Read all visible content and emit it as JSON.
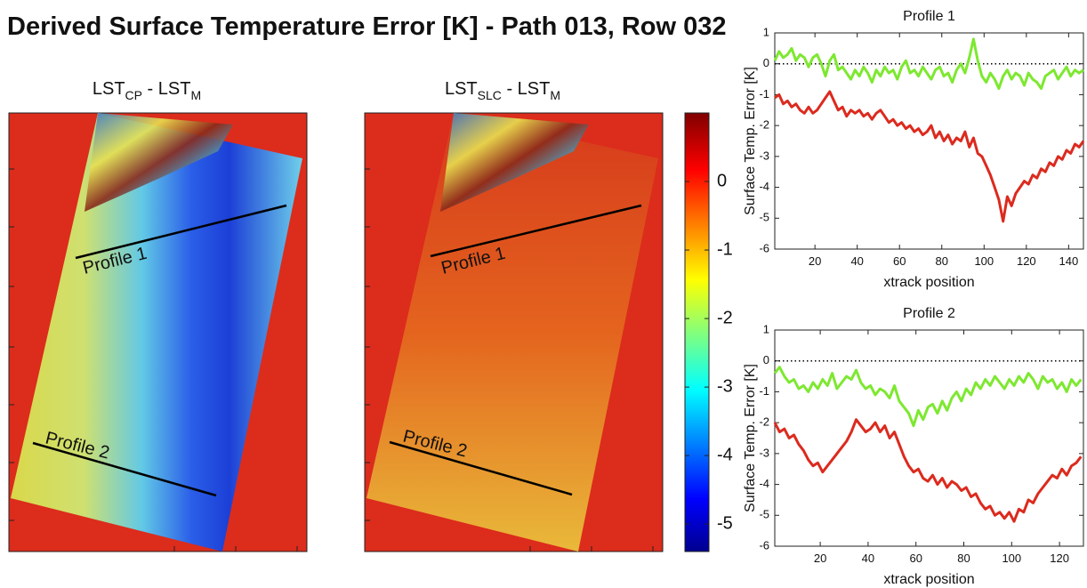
{
  "title": "Derived Surface Temperature Error [K] - Path 013, Row 032",
  "maps": [
    {
      "title": {
        "base1": "LST",
        "sub1": "CP",
        "sep": " - LST",
        "sub2": "M"
      },
      "profile_labels": [
        "Profile 1",
        "Profile 2"
      ]
    },
    {
      "title": {
        "base1": "LST",
        "sub1": "SLC",
        "sep": " - LST",
        "sub2": "M"
      },
      "profile_labels": [
        "Profile 1",
        "Profile 2"
      ]
    }
  ],
  "colorbar": {
    "clim": [
      -5.4,
      1
    ],
    "ticks": [
      0,
      -1,
      -2,
      -3,
      -4,
      -5
    ]
  },
  "chart_data": [
    {
      "type": "line",
      "title": "Profile 1",
      "x_label": "xtrack position",
      "y_label": "Surface Temp. Error [K]",
      "xlim": [
        1,
        147
      ],
      "ylim": [
        -6,
        1
      ],
      "xticks": [
        20,
        40,
        60,
        80,
        100,
        120,
        140
      ],
      "yticks": [
        -6,
        -5,
        -4,
        -3,
        -2,
        -1,
        0,
        1
      ],
      "reference_line": 0,
      "x": [
        1,
        3,
        5,
        7,
        9,
        11,
        13,
        15,
        17,
        19,
        21,
        23,
        25,
        27,
        29,
        31,
        33,
        35,
        37,
        39,
        41,
        43,
        45,
        47,
        49,
        51,
        53,
        55,
        57,
        59,
        61,
        63,
        65,
        67,
        69,
        71,
        73,
        75,
        77,
        79,
        81,
        83,
        85,
        87,
        89,
        91,
        93,
        95,
        97,
        99,
        101,
        103,
        105,
        107,
        109,
        111,
        113,
        115,
        117,
        119,
        121,
        123,
        125,
        127,
        129,
        131,
        133,
        135,
        137,
        139,
        141,
        143,
        145,
        147
      ],
      "series": [
        {
          "color": "#7de830",
          "values": [
            0.1,
            0.4,
            0.2,
            0.3,
            0.5,
            0.1,
            0.3,
            0.2,
            -0.1,
            0.2,
            0.3,
            0.0,
            -0.4,
            0.1,
            0.3,
            -0.2,
            -0.1,
            -0.3,
            -0.5,
            -0.2,
            -0.4,
            -0.1,
            -0.3,
            -0.6,
            -0.2,
            -0.4,
            -0.1,
            -0.3,
            -0.2,
            -0.5,
            -0.1,
            0.1,
            -0.3,
            -0.2,
            -0.4,
            -0.1,
            -0.3,
            -0.5,
            -0.2,
            -0.1,
            -0.4,
            -0.3,
            -0.6,
            -0.2,
            0.0,
            -0.3,
            0.2,
            0.8,
            0.1,
            -0.4,
            -0.6,
            -0.3,
            -0.5,
            -0.8,
            -0.4,
            -0.2,
            -0.5,
            -0.3,
            -0.4,
            -0.7,
            -0.3,
            -0.5,
            -0.6,
            -0.8,
            -0.4,
            -0.3,
            -0.2,
            -0.5,
            -0.3,
            -0.1,
            -0.4,
            -0.2,
            -0.3,
            -0.2
          ]
        },
        {
          "color": "#dc2a1e",
          "values": [
            -1.1,
            -1.0,
            -1.3,
            -1.2,
            -1.4,
            -1.3,
            -1.5,
            -1.6,
            -1.4,
            -1.6,
            -1.5,
            -1.3,
            -1.1,
            -0.9,
            -1.2,
            -1.5,
            -1.4,
            -1.7,
            -1.5,
            -1.6,
            -1.5,
            -1.7,
            -1.6,
            -1.8,
            -1.6,
            -1.5,
            -1.7,
            -1.9,
            -1.8,
            -2.0,
            -1.9,
            -2.1,
            -2.0,
            -2.2,
            -2.1,
            -2.3,
            -2.2,
            -2.0,
            -2.4,
            -2.2,
            -2.5,
            -2.3,
            -2.6,
            -2.4,
            -2.5,
            -2.2,
            -2.7,
            -2.4,
            -2.9,
            -3.0,
            -3.3,
            -3.6,
            -4.0,
            -4.4,
            -5.1,
            -4.3,
            -4.6,
            -4.2,
            -4.0,
            -3.8,
            -3.9,
            -3.6,
            -3.7,
            -3.4,
            -3.5,
            -3.2,
            -3.3,
            -3.0,
            -3.1,
            -2.8,
            -2.9,
            -2.6,
            -2.7,
            -2.5
          ]
        }
      ]
    },
    {
      "type": "line",
      "title": "Profile 2",
      "x_label": "xtrack position",
      "y_label": "Surface Temp. Error [K]",
      "xlim": [
        1,
        130
      ],
      "ylim": [
        -6,
        1
      ],
      "xticks": [
        20,
        40,
        60,
        80,
        100,
        120
      ],
      "yticks": [
        -6,
        -5,
        -4,
        -3,
        -2,
        -1,
        0,
        1
      ],
      "reference_line": 0,
      "x": [
        1,
        3,
        5,
        7,
        9,
        11,
        13,
        15,
        17,
        19,
        21,
        23,
        25,
        27,
        29,
        31,
        33,
        35,
        37,
        39,
        41,
        43,
        45,
        47,
        49,
        51,
        53,
        55,
        57,
        59,
        61,
        63,
        65,
        67,
        69,
        71,
        73,
        75,
        77,
        79,
        81,
        83,
        85,
        87,
        89,
        91,
        93,
        95,
        97,
        99,
        101,
        103,
        105,
        107,
        109,
        111,
        113,
        115,
        117,
        119,
        121,
        123,
        125,
        127,
        129
      ],
      "series": [
        {
          "color": "#7de830",
          "values": [
            -0.4,
            -0.2,
            -0.5,
            -0.7,
            -0.6,
            -0.9,
            -0.8,
            -1.0,
            -0.7,
            -0.9,
            -0.6,
            -0.8,
            -0.4,
            -0.9,
            -0.7,
            -0.5,
            -0.6,
            -0.3,
            -0.7,
            -0.9,
            -0.8,
            -1.1,
            -0.9,
            -1.0,
            -1.2,
            -0.8,
            -1.3,
            -1.5,
            -1.7,
            -2.1,
            -1.6,
            -1.9,
            -1.5,
            -1.4,
            -1.7,
            -1.3,
            -1.6,
            -1.2,
            -1.0,
            -1.3,
            -0.9,
            -1.1,
            -0.7,
            -0.9,
            -0.6,
            -0.8,
            -0.5,
            -0.7,
            -0.9,
            -0.6,
            -0.8,
            -0.5,
            -0.7,
            -0.4,
            -0.6,
            -0.9,
            -0.5,
            -0.7,
            -0.6,
            -0.9,
            -0.7,
            -1.0,
            -0.6,
            -0.8,
            -0.6
          ]
        },
        {
          "color": "#dc2a1e",
          "values": [
            -2.0,
            -2.3,
            -2.2,
            -2.5,
            -2.4,
            -2.7,
            -2.9,
            -3.2,
            -3.4,
            -3.3,
            -3.6,
            -3.4,
            -3.2,
            -3.0,
            -2.8,
            -2.6,
            -2.3,
            -1.9,
            -2.1,
            -2.3,
            -2.2,
            -2.0,
            -2.3,
            -2.1,
            -2.5,
            -2.3,
            -2.7,
            -3.1,
            -3.4,
            -3.6,
            -3.5,
            -3.8,
            -3.9,
            -3.7,
            -4.0,
            -3.8,
            -4.1,
            -3.9,
            -4.0,
            -4.2,
            -4.1,
            -4.4,
            -4.3,
            -4.6,
            -4.8,
            -4.7,
            -5.0,
            -4.9,
            -5.1,
            -4.9,
            -5.2,
            -4.8,
            -4.9,
            -4.5,
            -4.6,
            -4.3,
            -4.1,
            -3.9,
            -3.7,
            -3.8,
            -3.5,
            -3.7,
            -3.4,
            -3.3,
            -3.1
          ]
        }
      ]
    }
  ]
}
